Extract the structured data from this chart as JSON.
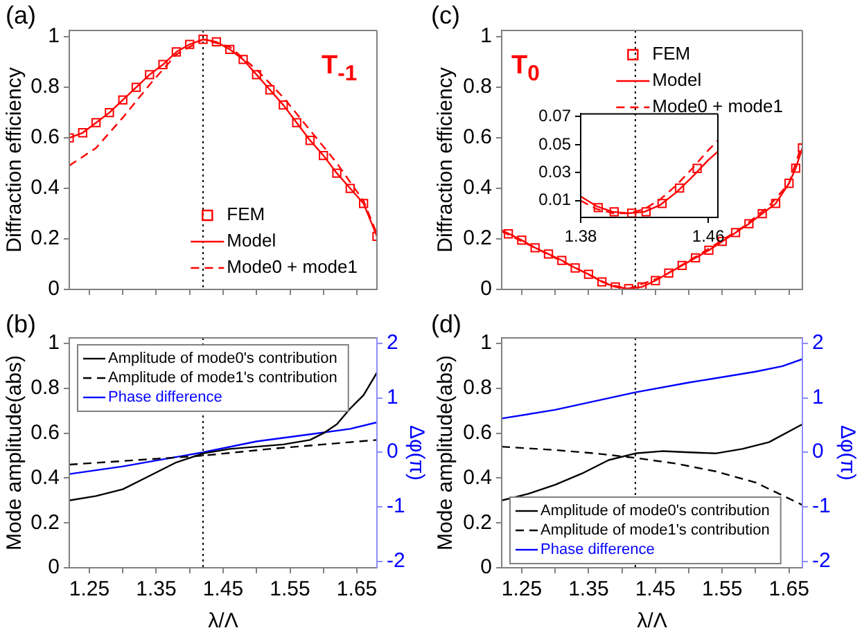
{
  "chart_data": [
    {
      "type": "line",
      "ylabel": "Diffraction efficiency",
      "xlim": [
        1.22,
        1.68
      ],
      "ylim": [
        0,
        1.025
      ],
      "xticks": [
        1.25,
        {
          "value": 1.3,
          "label": null
        },
        1.35,
        {
          "value": 1.4,
          "label": null
        },
        1.45,
        {
          "value": 1.5,
          "label": null
        },
        1.55,
        {
          "value": 1.6,
          "label": null
        },
        1.65
      ],
      "yticks": [
        0,
        0.2,
        0.4,
        0.6,
        0.8,
        1
      ],
      "tick_labels": "y",
      "grid": false,
      "legend": "bottom right",
      "annotations": [
        "(a)",
        "T$_{-1}$"
      ],
      "ref_lines": [
        {
          "axis": "x",
          "value": 1.42,
          "color": "#000000",
          "line_style": "dotted"
        }
      ],
      "series": [
        {
          "name": "FEM",
          "type": "scatter",
          "marker": "square",
          "color": "#ff0000",
          "x": [
            1.22,
            1.24,
            1.26,
            1.28,
            1.3,
            1.32,
            1.34,
            1.36,
            1.38,
            1.4,
            1.42,
            1.44,
            1.46,
            1.48,
            1.5,
            1.52,
            1.54,
            1.56,
            1.58,
            1.6,
            1.62,
            1.64,
            1.66,
            1.68
          ],
          "values": [
            0.6,
            0.62,
            0.66,
            0.7,
            0.75,
            0.8,
            0.85,
            0.89,
            0.94,
            0.97,
            0.99,
            0.98,
            0.95,
            0.91,
            0.85,
            0.79,
            0.73,
            0.66,
            0.59,
            0.53,
            0.46,
            0.4,
            0.34,
            0.21
          ]
        },
        {
          "name": "Model",
          "color": "#ff0000",
          "line_style": "solid",
          "x": [
            1.22,
            1.24,
            1.26,
            1.28,
            1.3,
            1.32,
            1.34,
            1.36,
            1.38,
            1.4,
            1.42,
            1.44,
            1.46,
            1.48,
            1.5,
            1.52,
            1.54,
            1.56,
            1.58,
            1.6,
            1.62,
            1.64,
            1.66,
            1.68
          ],
          "values": [
            0.6,
            0.62,
            0.66,
            0.7,
            0.75,
            0.8,
            0.85,
            0.89,
            0.94,
            0.97,
            0.99,
            0.98,
            0.95,
            0.91,
            0.85,
            0.79,
            0.73,
            0.66,
            0.59,
            0.53,
            0.46,
            0.4,
            0.34,
            0.21
          ]
        },
        {
          "name": "Mode0 + mode1",
          "color": "#ff0000",
          "line_style": "dashed",
          "x": [
            1.22,
            1.26,
            1.3,
            1.34,
            1.38,
            1.42,
            1.46,
            1.5,
            1.54,
            1.58,
            1.62,
            1.66,
            1.68
          ],
          "values": [
            0.49,
            0.56,
            0.68,
            0.81,
            0.93,
            0.99,
            0.96,
            0.87,
            0.76,
            0.63,
            0.5,
            0.35,
            0.22
          ]
        }
      ]
    },
    {
      "type": "line",
      "ylabel": "Diffraction efficiency",
      "xlim": [
        1.22,
        1.67
      ],
      "ylim": [
        0,
        1.025
      ],
      "xticks": [
        1.25,
        {
          "value": 1.3,
          "label": null
        },
        1.35,
        {
          "value": 1.4,
          "label": null
        },
        1.45,
        {
          "value": 1.5,
          "label": null
        },
        1.55,
        {
          "value": 1.6,
          "label": null
        },
        1.65
      ],
      "yticks": [
        0,
        0.2,
        0.4,
        0.6,
        0.8,
        1
      ],
      "tick_labels": "y",
      "grid": false,
      "legend": "top right",
      "annotations": [
        "(c)",
        "T$_{0}$"
      ],
      "ref_lines": [
        {
          "axis": "x",
          "value": 1.42,
          "color": "#000000",
          "line_style": "dotted"
        }
      ],
      "series": [
        {
          "name": "FEM",
          "type": "scatter",
          "marker": "square",
          "color": "#ff0000",
          "x": [
            1.23,
            1.25,
            1.27,
            1.29,
            1.31,
            1.33,
            1.35,
            1.37,
            1.39,
            1.41,
            1.43,
            1.45,
            1.47,
            1.49,
            1.51,
            1.53,
            1.55,
            1.57,
            1.59,
            1.61,
            1.63,
            1.65,
            1.66,
            1.67
          ],
          "values": [
            0.22,
            0.195,
            0.165,
            0.14,
            0.115,
            0.085,
            0.06,
            0.03,
            0.01,
            0.003,
            0.01,
            0.035,
            0.065,
            0.095,
            0.125,
            0.155,
            0.19,
            0.225,
            0.26,
            0.3,
            0.34,
            0.42,
            0.48,
            0.56
          ]
        },
        {
          "name": "Model",
          "color": "#ff0000",
          "line_style": "solid",
          "x": [
            1.22,
            1.25,
            1.27,
            1.29,
            1.31,
            1.33,
            1.35,
            1.37,
            1.39,
            1.41,
            1.43,
            1.45,
            1.47,
            1.49,
            1.51,
            1.53,
            1.55,
            1.57,
            1.59,
            1.61,
            1.63,
            1.65,
            1.66,
            1.67
          ],
          "values": [
            0.235,
            0.195,
            0.165,
            0.14,
            0.115,
            0.085,
            0.06,
            0.03,
            0.01,
            0.003,
            0.01,
            0.035,
            0.065,
            0.095,
            0.125,
            0.155,
            0.19,
            0.225,
            0.26,
            0.3,
            0.34,
            0.42,
            0.48,
            0.56
          ]
        },
        {
          "name": "Mode0 + mode1",
          "color": "#ff0000",
          "line_style": "dashed",
          "x": [
            1.22,
            1.3,
            1.38,
            1.41,
            1.46,
            1.52,
            1.58,
            1.62,
            1.65,
            1.67
          ],
          "values": [
            0.23,
            0.125,
            0.02,
            0.003,
            0.05,
            0.145,
            0.245,
            0.33,
            0.42,
            0.58
          ]
        }
      ]
    },
    {
      "type": "line",
      "xlim": [
        1.38,
        1.466
      ],
      "ylim": [
        -0.002,
        0.072
      ],
      "xticks": [
        1.38,
        1.46
      ],
      "yticks": [
        0.01,
        0.03,
        0.05,
        0.07
      ],
      "grid": false,
      "series": [
        {
          "type": "scatter",
          "marker": "square",
          "color": "#ff0000",
          "x": [
            1.391,
            1.401,
            1.412,
            1.421,
            1.431,
            1.442,
            1.453
          ],
          "values": [
            0.005,
            0.002,
            0.001,
            0.002,
            0.008,
            0.019,
            0.033
          ]
        },
        {
          "color": "#ff0000",
          "line_style": "solid",
          "x": [
            1.38,
            1.39,
            1.4,
            1.41,
            1.42,
            1.43,
            1.44,
            1.45,
            1.46,
            1.466
          ],
          "values": [
            0.013,
            0.006,
            0.002,
            0.001,
            0.002,
            0.007,
            0.016,
            0.027,
            0.039,
            0.045
          ]
        },
        {
          "color": "#ff0000",
          "line_style": "dashed",
          "x": [
            1.38,
            1.39,
            1.4,
            1.41,
            1.42,
            1.43,
            1.44,
            1.45,
            1.46,
            1.466
          ],
          "values": [
            0.01,
            0.004,
            0.001,
            0.001,
            0.004,
            0.011,
            0.021,
            0.033,
            0.046,
            0.053
          ]
        }
      ]
    },
    {
      "type": "line",
      "xlabel": "λ/Λ",
      "ylabel": "Mode amplitude(abs)",
      "y2label": "Δφ(π)",
      "xlim": [
        1.22,
        1.68
      ],
      "ylim": [
        0,
        1.025
      ],
      "y2lim": [
        -2.12,
        2.1
      ],
      "xticks": [
        1.25,
        {
          "value": 1.3,
          "label": null
        },
        1.35,
        {
          "value": 1.4,
          "label": null
        },
        1.45,
        {
          "value": 1.5,
          "label": null
        },
        1.55,
        {
          "value": 1.6,
          "label": null
        },
        1.65
      ],
      "yticks": [
        0,
        0.2,
        0.4,
        0.6,
        0.8,
        1
      ],
      "y2ticks": [
        -2,
        -1,
        0,
        1,
        2
      ],
      "grid": false,
      "legend": "top left",
      "annotations": [
        "(b)"
      ],
      "ref_lines": [
        {
          "axis": "x",
          "value": 1.42,
          "color": "#000000",
          "line_style": "dotted"
        }
      ],
      "series": [
        {
          "name": "Amplitude of mode0's contribution",
          "color": "#000000",
          "line_style": "solid",
          "x": [
            1.22,
            1.26,
            1.3,
            1.34,
            1.38,
            1.42,
            1.46,
            1.5,
            1.54,
            1.58,
            1.6,
            1.62,
            1.64,
            1.66,
            1.68
          ],
          "values": [
            0.3,
            0.32,
            0.35,
            0.41,
            0.47,
            0.51,
            0.53,
            0.54,
            0.55,
            0.57,
            0.6,
            0.64,
            0.71,
            0.77,
            0.87
          ]
        },
        {
          "name": "Amplitude of mode1's contribution",
          "color": "#000000",
          "line_style": "dashed",
          "x": [
            1.22,
            1.32,
            1.42,
            1.52,
            1.6,
            1.68
          ],
          "values": [
            0.46,
            0.48,
            0.5,
            0.53,
            0.55,
            0.57
          ]
        },
        {
          "name": "Phase difference",
          "color": "#0000ff",
          "line_style": "solid",
          "axis": "y2",
          "x": [
            1.22,
            1.3,
            1.36,
            1.42,
            1.5,
            1.58,
            1.64,
            1.68
          ],
          "values": [
            -0.4,
            -0.26,
            -0.13,
            0.0,
            0.2,
            0.33,
            0.43,
            0.55
          ]
        }
      ]
    },
    {
      "type": "line",
      "xlabel": "λ/Λ",
      "ylabel": "Mode amplitude(abs)",
      "y2label": "Δφ(π)",
      "xlim": [
        1.22,
        1.67
      ],
      "ylim": [
        0,
        1.025
      ],
      "y2lim": [
        -2.12,
        2.1
      ],
      "xticks": [
        1.25,
        {
          "value": 1.3,
          "label": null
        },
        1.35,
        {
          "value": 1.4,
          "label": null
        },
        1.45,
        {
          "value": 1.5,
          "label": null
        },
        1.55,
        {
          "value": 1.6,
          "label": null
        },
        1.65
      ],
      "yticks": [
        0,
        0.2,
        0.4,
        0.6,
        0.8,
        1
      ],
      "y2ticks": [
        -2,
        -1,
        0,
        1,
        2
      ],
      "grid": false,
      "legend": "bottom left",
      "annotations": [
        "(d)"
      ],
      "ref_lines": [
        {
          "axis": "x",
          "value": 1.42,
          "color": "#000000",
          "line_style": "dotted"
        }
      ],
      "series": [
        {
          "name": "Amplitude of mode0's contribution",
          "color": "#000000",
          "line_style": "solid",
          "x": [
            1.22,
            1.26,
            1.3,
            1.34,
            1.38,
            1.42,
            1.46,
            1.5,
            1.54,
            1.58,
            1.62,
            1.67
          ],
          "values": [
            0.3,
            0.33,
            0.37,
            0.42,
            0.48,
            0.51,
            0.52,
            0.515,
            0.51,
            0.53,
            0.56,
            0.64
          ]
        },
        {
          "name": "Amplitude of mode1's contribution",
          "color": "#000000",
          "line_style": "dashed",
          "x": [
            1.22,
            1.3,
            1.36,
            1.42,
            1.48,
            1.54,
            1.6,
            1.67
          ],
          "values": [
            0.54,
            0.525,
            0.51,
            0.49,
            0.465,
            0.43,
            0.38,
            0.28
          ]
        },
        {
          "name": "Phase difference",
          "color": "#0000ff",
          "line_style": "solid",
          "axis": "y2",
          "x": [
            1.22,
            1.3,
            1.42,
            1.5,
            1.6,
            1.64,
            1.67
          ],
          "values": [
            0.62,
            0.78,
            1.1,
            1.28,
            1.48,
            1.58,
            1.71
          ]
        }
      ]
    }
  ]
}
